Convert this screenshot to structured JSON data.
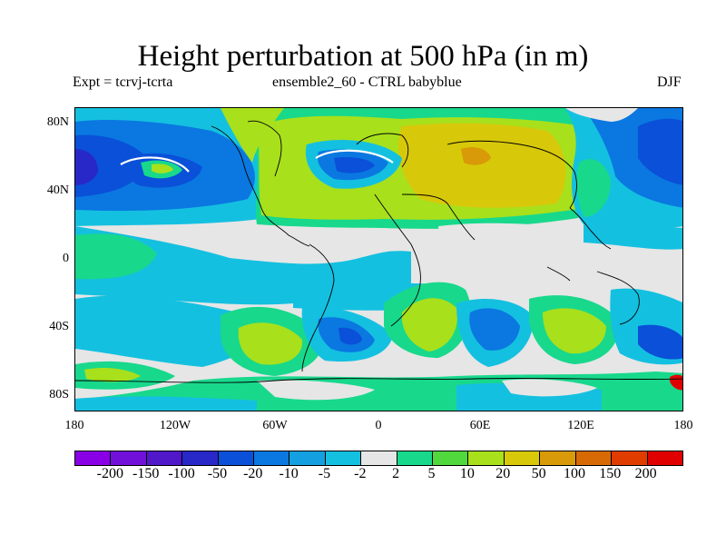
{
  "title": "Height perturbation at 500 hPa (in m)",
  "subtitle_left": "Expt = tcrvj-tcrta",
  "subtitle_center": "ensemble2_60 - CTRL babyblue",
  "subtitle_right": "DJF",
  "map": {
    "projection": "cylindrical equidistant",
    "lat_labels": [
      "80N",
      "40N",
      "0",
      "40S",
      "80S"
    ],
    "lon_labels": [
      "180",
      "120W",
      "60W",
      "0",
      "60E",
      "120E",
      "180"
    ],
    "background_level_color": "#e6e6e6"
  },
  "colorbar": {
    "colors": [
      "#8a00e6",
      "#7010d8",
      "#5018c8",
      "#2828c8",
      "#0a50d8",
      "#0a78e0",
      "#14a0e0",
      "#14c0e0",
      "#e6e6e6",
      "#18d88c",
      "#50d83c",
      "#a8e01c",
      "#d8c80a",
      "#d89a08",
      "#d86a05",
      "#e03c00",
      "#e00000"
    ],
    "labels": [
      "-200",
      "-150",
      "-100",
      "-50",
      "-20",
      "-10",
      "-5",
      "-2",
      "2",
      "5",
      "10",
      "20",
      "50",
      "100",
      "150",
      "200"
    ]
  }
}
